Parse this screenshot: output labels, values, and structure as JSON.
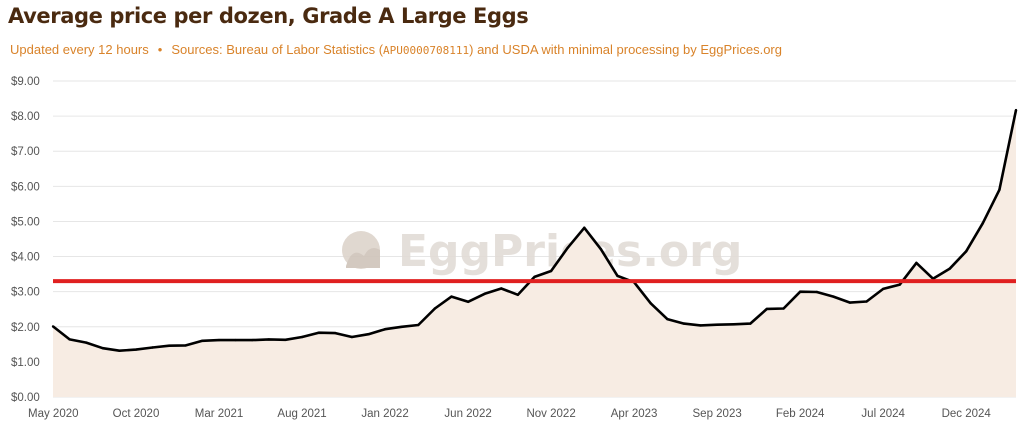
{
  "page": {
    "title": "Average price per dozen, Grade A Large Eggs",
    "subtitle_updated": "Updated every 12 hours",
    "subtitle_separator": "•",
    "subtitle_sources_prefix": "Sources: Bureau of Labor Statistics (",
    "subtitle_series_code": "APU0000708111",
    "subtitle_sources_suffix": ") and USDA with minimal processing by EggPrices.org"
  },
  "watermark": {
    "text": "EggPrices.org",
    "icon": "egg-logo-icon"
  },
  "colors": {
    "line": "#000000",
    "area_fill": "#f7ece3",
    "reference_line": "#e02020",
    "grid": "#e6e6e6",
    "title": "#4a2a10",
    "subtitle": "#d9832a"
  },
  "chart_data": {
    "type": "line",
    "title": "Average price per dozen, Grade A Large Eggs",
    "xlabel": "",
    "ylabel": "",
    "x_ticks": [
      "May 2020",
      "Oct 2020",
      "Mar 2021",
      "Aug 2021",
      "Jan 2022",
      "Jun 2022",
      "Nov 2022",
      "Apr 2023",
      "Sep 2023",
      "Feb 2024",
      "Jul 2024",
      "Dec 2024"
    ],
    "y_ticks": [
      "$0.00",
      "$1.00",
      "$2.00",
      "$3.00",
      "$4.00",
      "$5.00",
      "$6.00",
      "$7.00",
      "$8.00",
      "$9.00"
    ],
    "xlim": [
      "2020-05",
      "2025-03"
    ],
    "ylim": [
      0,
      9
    ],
    "grid": true,
    "area_fill": true,
    "reference_line": {
      "value": 3.3
    },
    "series": [
      {
        "x": [
          "2020-05",
          "2020-06",
          "2020-07",
          "2020-08",
          "2020-09",
          "2020-10",
          "2020-11",
          "2020-12",
          "2021-01",
          "2021-02",
          "2021-03",
          "2021-04",
          "2021-05",
          "2021-06",
          "2021-07",
          "2021-08",
          "2021-09",
          "2021-10",
          "2021-11",
          "2021-12",
          "2022-01",
          "2022-02",
          "2022-03",
          "2022-04",
          "2022-05",
          "2022-06",
          "2022-07",
          "2022-08",
          "2022-09",
          "2022-10",
          "2022-11",
          "2022-12",
          "2023-01",
          "2023-02",
          "2023-03",
          "2023-04",
          "2023-05",
          "2023-06",
          "2023-07",
          "2023-08",
          "2023-09",
          "2023-10",
          "2023-11",
          "2023-12",
          "2024-01",
          "2024-02",
          "2024-03",
          "2024-04",
          "2024-05",
          "2024-06",
          "2024-07",
          "2024-08",
          "2024-09",
          "2024-10",
          "2024-11",
          "2024-12",
          "2025-01",
          "2025-02",
          "2025-03"
        ],
        "values": [
          2.01,
          1.64,
          1.55,
          1.39,
          1.32,
          1.35,
          1.41,
          1.46,
          1.47,
          1.6,
          1.62,
          1.62,
          1.62,
          1.64,
          1.63,
          1.71,
          1.83,
          1.82,
          1.71,
          1.79,
          1.93,
          2.0,
          2.05,
          2.52,
          2.86,
          2.71,
          2.94,
          3.09,
          2.91,
          3.42,
          3.59,
          4.25,
          4.82,
          4.21,
          3.45,
          3.27,
          2.67,
          2.22,
          2.09,
          2.04,
          2.06,
          2.07,
          2.09,
          2.51,
          2.52,
          3.0,
          2.99,
          2.86,
          2.69,
          2.72,
          3.08,
          3.2,
          3.82,
          3.37,
          3.65,
          4.15,
          4.95,
          5.9,
          8.17
        ]
      }
    ]
  }
}
